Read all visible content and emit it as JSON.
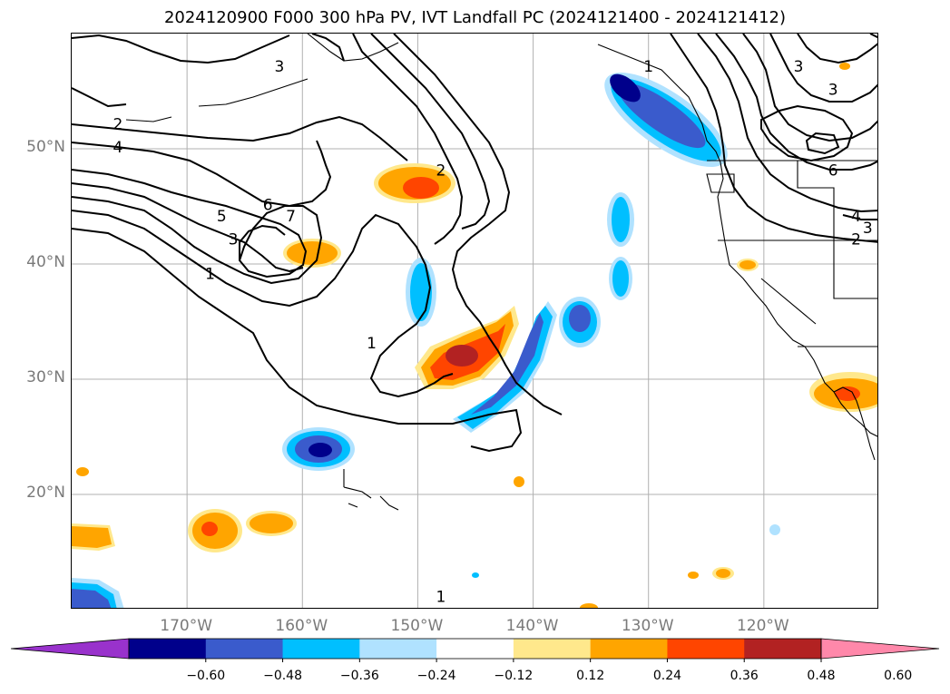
{
  "figure": {
    "title": "2024120900 F000 300 hPa PV, IVT Landfall PC (2024121400 - 2024121412)"
  },
  "map": {
    "projection": "PlateCarree",
    "lon_range": [
      -180,
      -110
    ],
    "lat_range": [
      10,
      60
    ],
    "lat_ticks": [
      {
        "value": 20,
        "label": "20°N"
      },
      {
        "value": 30,
        "label": "30°N"
      },
      {
        "value": 40,
        "label": "40°N"
      },
      {
        "value": 50,
        "label": "50°N"
      }
    ],
    "lon_ticks": [
      {
        "value": -170,
        "label": "170°W"
      },
      {
        "value": -160,
        "label": "160°W"
      },
      {
        "value": -150,
        "label": "150°W"
      },
      {
        "value": -140,
        "label": "140°W"
      },
      {
        "value": -130,
        "label": "130°W"
      },
      {
        "value": -120,
        "label": "120°W"
      }
    ],
    "gridlines": true,
    "contour_labels": [
      {
        "text": "1",
        "lon": -168,
        "lat": 39
      },
      {
        "text": "2",
        "lon": -176,
        "lat": 52
      },
      {
        "text": "3",
        "lon": -166,
        "lat": 42
      },
      {
        "text": "4",
        "lon": -176,
        "lat": 50
      },
      {
        "text": "5",
        "lon": -167,
        "lat": 44
      },
      {
        "text": "6",
        "lon": -163,
        "lat": 45
      },
      {
        "text": "7",
        "lon": -161,
        "lat": 44
      },
      {
        "text": "2",
        "lon": -148,
        "lat": 48
      },
      {
        "text": "3",
        "lon": -162,
        "lat": 57
      },
      {
        "text": "1",
        "lon": -154,
        "lat": 33
      },
      {
        "text": "1",
        "lon": -130,
        "lat": 57
      },
      {
        "text": "3",
        "lon": -117,
        "lat": 57
      },
      {
        "text": "3",
        "lon": -114,
        "lat": 55
      },
      {
        "text": "6",
        "lon": -114,
        "lat": 48
      },
      {
        "text": "4",
        "lon": -112,
        "lat": 44
      },
      {
        "text": "3",
        "lon": -111,
        "lat": 43
      },
      {
        "text": "2",
        "lon": -112,
        "lat": 42
      },
      {
        "text": "1",
        "lon": -148,
        "lat": 11
      }
    ]
  },
  "colorbar": {
    "levels": [
      -0.6,
      -0.48,
      -0.36,
      -0.24,
      -0.12,
      0.12,
      0.24,
      0.36,
      0.48,
      0.6
    ],
    "tick_labels": [
      "−0.60",
      "−0.48",
      "−0.36",
      "−0.24",
      "−0.12",
      "0.12",
      "0.24",
      "0.36",
      "0.48",
      "0.60"
    ],
    "colors": [
      "#9932cc",
      "#00008b",
      "#3a5bcc",
      "#00bfff",
      "#b0e2ff",
      "#ffffff",
      "#ffe88c",
      "#ffa500",
      "#ff4500",
      "#b22222",
      "#ff88aa"
    ],
    "extend": "both"
  },
  "shading_colors": {
    "neg_light": "#b0e2ff",
    "neg_mid": "#00bfff",
    "neg_strong": "#3a5bcc",
    "neg_max": "#00008b",
    "pos_light": "#ffe88c",
    "pos_mid": "#ffa500",
    "pos_strong": "#ff4500",
    "pos_max": "#b22222"
  }
}
